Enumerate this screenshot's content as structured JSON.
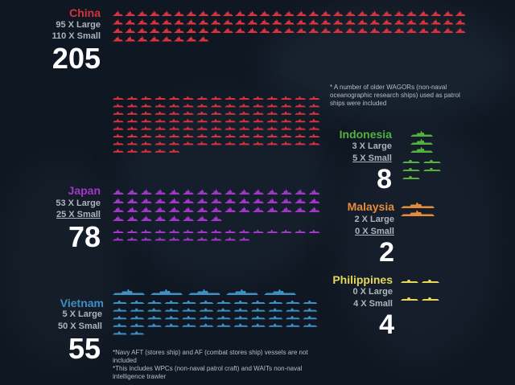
{
  "colors": {
    "china": "#d8323c",
    "japan": "#a236c9",
    "vietnam": "#3e8fc4",
    "indonesia": "#55b040",
    "malaysia": "#e58c3a",
    "philippines": "#e6d65a"
  },
  "chart_data": {
    "type": "pictogram",
    "title": "",
    "series": [
      {
        "name": "China",
        "large_label": "95 X Large",
        "small_label": "110 X Small",
        "total": "205",
        "large": 95,
        "small": 110
      },
      {
        "name": "Japan",
        "large_label": "53 X Large",
        "small_label": "25 X Small",
        "total": "78",
        "large": 53,
        "small": 25
      },
      {
        "name": "Vietnam",
        "large_label": "5 X Large",
        "small_label": "50 X Small",
        "total": "55",
        "large": 5,
        "small": 50
      },
      {
        "name": "Indonesia",
        "large_label": "3 X Large",
        "small_label": "5 X Small",
        "total": "8",
        "large": 3,
        "small": 5
      },
      {
        "name": "Malaysia",
        "large_label": "2 X Large",
        "small_label": "0 X Small",
        "total": "2",
        "large": 2,
        "small": 0
      },
      {
        "name": "Philippines",
        "large_label": "0 X Large",
        "small_label": "4 X Small",
        "total": "4",
        "large": 0,
        "small": 4
      }
    ],
    "annotations": {
      "china_note": "* A number of older WAGORs (non-naval oceanographic research ships) used as patrol ships were included",
      "vietnam_note_1": "*Navy AFT (stores ship) and AF (combat stores ship) vessels are not included",
      "vietnam_note_2": "*This includes WPCs (non-naval patrol craft) and WAITs non-naval intelligence trawler"
    }
  }
}
